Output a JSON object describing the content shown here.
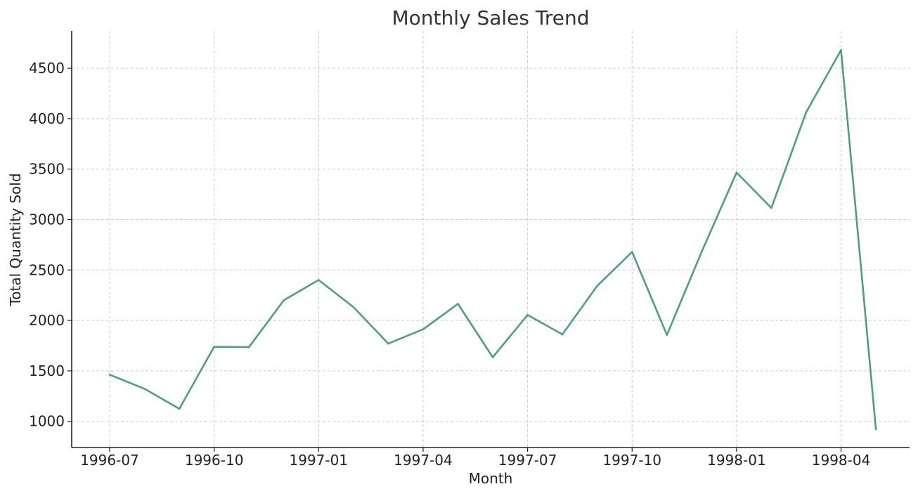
{
  "chart_data": {
    "type": "line",
    "title": "Monthly Sales Trend",
    "xlabel": "Month",
    "ylabel": "Total Quantity Sold",
    "x": [
      "1996-07",
      "1996-08",
      "1996-09",
      "1996-10",
      "1996-11",
      "1996-12",
      "1997-01",
      "1997-02",
      "1997-03",
      "1997-04",
      "1997-05",
      "1997-06",
      "1997-07",
      "1997-08",
      "1997-09",
      "1997-10",
      "1997-11",
      "1997-12",
      "1998-01",
      "1998-02",
      "1998-03",
      "1998-04",
      "1998-05"
    ],
    "x_ticks": [
      "1996-07",
      "1996-10",
      "1997-01",
      "1997-04",
      "1997-07",
      "1997-10",
      "1998-01",
      "1998-04"
    ],
    "y_ticks": [
      1000,
      1500,
      2000,
      2500,
      3000,
      3500,
      4000,
      4500
    ],
    "ylim": [
      740,
      4870
    ],
    "series": [
      {
        "values": [
          1462,
          1322,
          1124,
          1738,
          1735,
          2200,
          2401,
          2132,
          1770,
          1912,
          2164,
          1635,
          2054,
          1861,
          2343,
          2679,
          1856,
          2682,
          3466,
          3115,
          4065,
          4680,
          921
        ],
        "color": "#4c9f84"
      }
    ],
    "grid": true
  }
}
